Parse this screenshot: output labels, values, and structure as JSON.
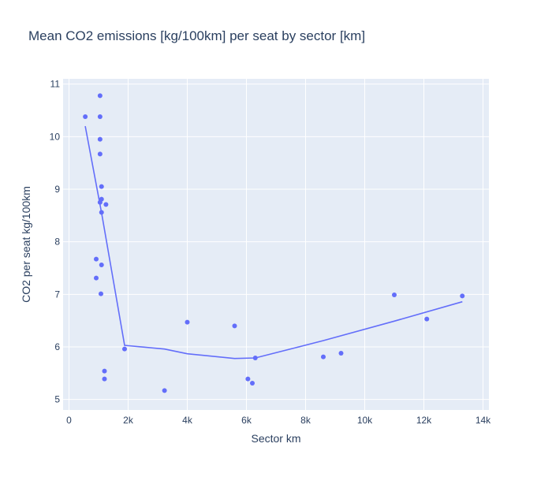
{
  "chart_data": {
    "type": "scatter",
    "title": "Mean CO2 emissions [kg/100km] per seat by sector [km]",
    "xlabel": "Sector km",
    "ylabel": "CO2 per seat kg/100km",
    "xlim": [
      -200,
      14200
    ],
    "ylim": [
      4.8,
      11.1
    ],
    "xticks": [
      0,
      2000,
      4000,
      6000,
      8000,
      10000,
      12000,
      14000
    ],
    "xtick_labels": [
      "0",
      "2k",
      "4k",
      "6k",
      "8k",
      "10k",
      "12k",
      "14k"
    ],
    "yticks": [
      5,
      6,
      7,
      8,
      9,
      10,
      11
    ],
    "ytick_labels": [
      "5",
      "6",
      "7",
      "8",
      "9",
      "10",
      "11"
    ],
    "grid": true,
    "colors": {
      "marker": "#636efa",
      "plot_bg": "#e5ecf6",
      "grid": "#ffffff",
      "text": "#2a3f5f"
    },
    "points": [
      {
        "x": 550,
        "y": 10.38
      },
      {
        "x": 1050,
        "y": 10.78
      },
      {
        "x": 1050,
        "y": 10.38
      },
      {
        "x": 1050,
        "y": 9.95
      },
      {
        "x": 1050,
        "y": 9.67
      },
      {
        "x": 1100,
        "y": 9.05
      },
      {
        "x": 1100,
        "y": 8.81
      },
      {
        "x": 1050,
        "y": 8.75
      },
      {
        "x": 1250,
        "y": 8.71
      },
      {
        "x": 1100,
        "y": 8.56
      },
      {
        "x": 920,
        "y": 7.67
      },
      {
        "x": 1100,
        "y": 7.56
      },
      {
        "x": 920,
        "y": 7.31
      },
      {
        "x": 1080,
        "y": 7.01
      },
      {
        "x": 1880,
        "y": 5.96
      },
      {
        "x": 1200,
        "y": 5.54
      },
      {
        "x": 1200,
        "y": 5.39
      },
      {
        "x": 3230,
        "y": 5.17
      },
      {
        "x": 4000,
        "y": 6.47
      },
      {
        "x": 5600,
        "y": 6.4
      },
      {
        "x": 6050,
        "y": 5.39
      },
      {
        "x": 6200,
        "y": 5.31
      },
      {
        "x": 6300,
        "y": 5.79
      },
      {
        "x": 8600,
        "y": 5.81
      },
      {
        "x": 9200,
        "y": 5.88
      },
      {
        "x": 11000,
        "y": 6.99
      },
      {
        "x": 12100,
        "y": 6.53
      },
      {
        "x": 13300,
        "y": 6.97
      }
    ],
    "trend_line": [
      {
        "x": 550,
        "y": 10.2
      },
      {
        "x": 1100,
        "y": 8.55
      },
      {
        "x": 1880,
        "y": 6.03
      },
      {
        "x": 3230,
        "y": 5.96
      },
      {
        "x": 4000,
        "y": 5.87
      },
      {
        "x": 5600,
        "y": 5.78
      },
      {
        "x": 6300,
        "y": 5.79
      },
      {
        "x": 8600,
        "y": 6.12
      },
      {
        "x": 11000,
        "y": 6.49
      },
      {
        "x": 13300,
        "y": 6.86
      }
    ]
  }
}
